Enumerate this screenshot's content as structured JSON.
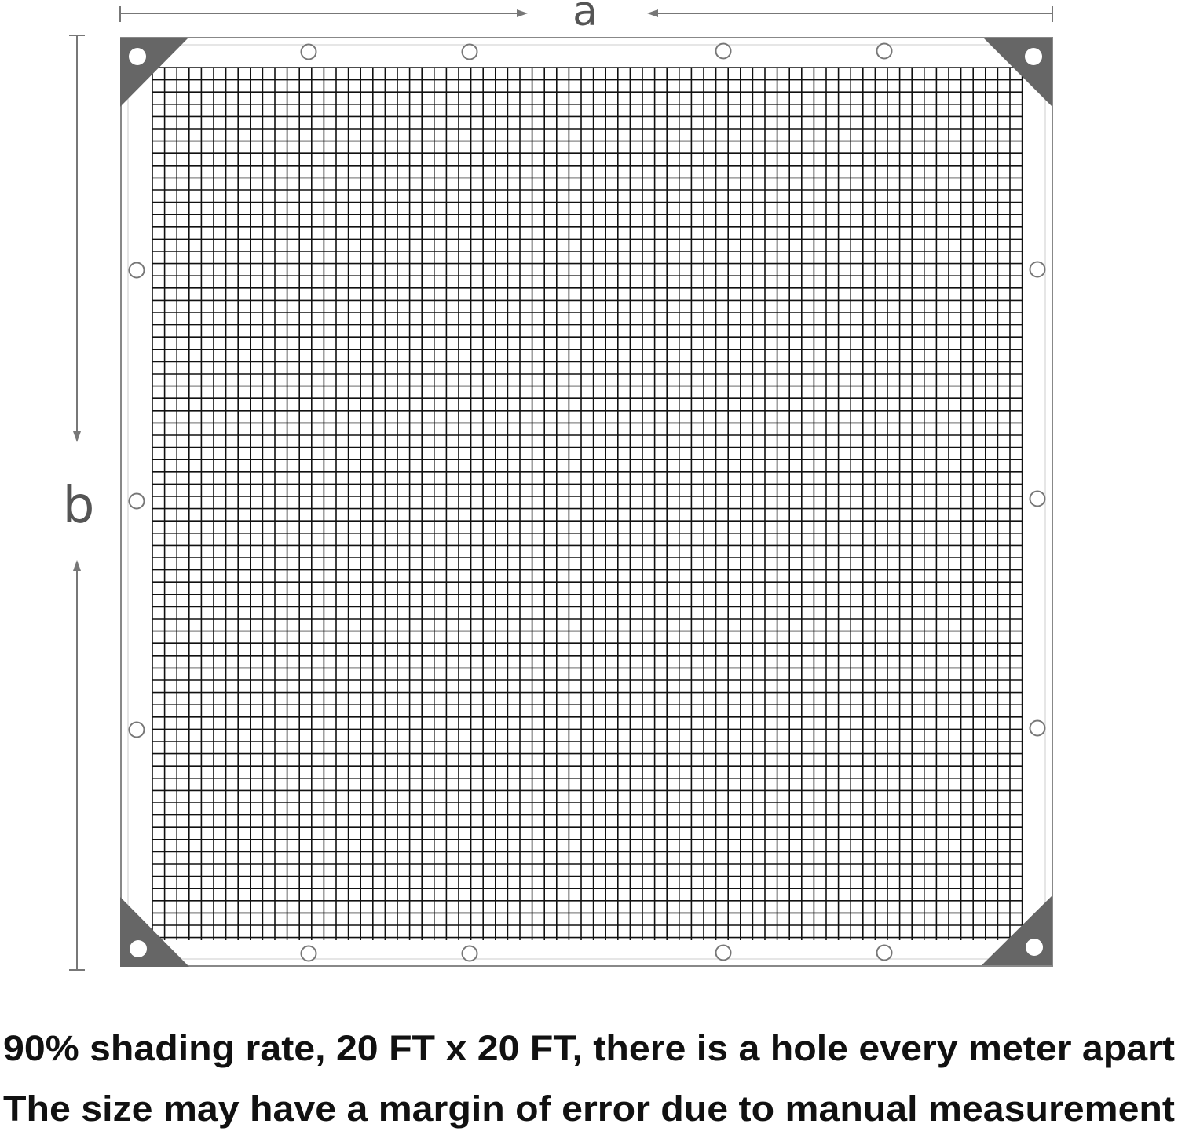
{
  "dimensions": {
    "width_label": "a",
    "height_label": "b"
  },
  "caption": {
    "line1": "90% shading  rate, 20 FT x 20 FT, there is a hole every meter apart",
    "line2": "The size  may  have a margin of error due to manual measurement"
  },
  "colors": {
    "corner_patch": "#666666",
    "frame": "#888888",
    "mesh": "#111111",
    "text": "#111111"
  },
  "grommets": {
    "per_top_edge": 4,
    "per_bottom_edge": 4,
    "per_left_edge": 3,
    "per_right_edge": 3,
    "corners": 4
  }
}
